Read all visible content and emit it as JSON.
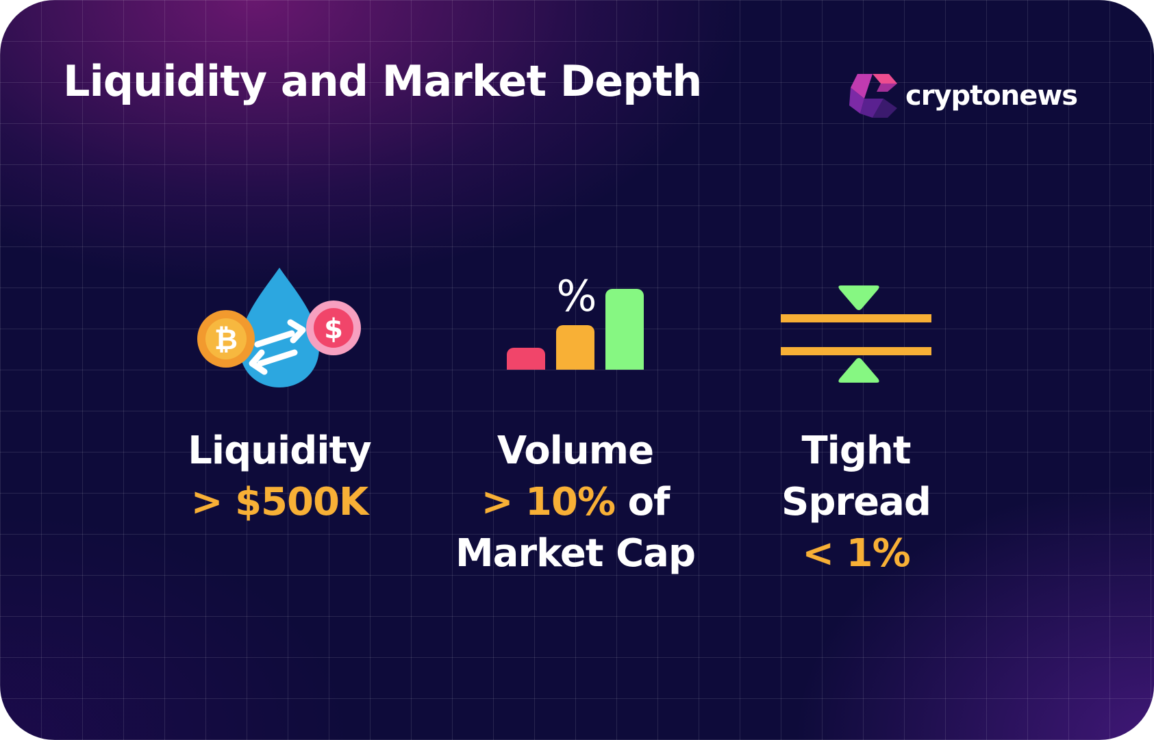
{
  "title": "Liquidity and Market Depth",
  "brand": {
    "name": "cryptonews",
    "logo_icon": "cryptonews-logo-icon"
  },
  "colors": {
    "background": "#0e0b3a",
    "highlight": "#f8b036",
    "text": "#ffffff",
    "pink": "#f1456a",
    "green": "#86f782",
    "blue": "#2ca7e0",
    "orange": "#f29a2e"
  },
  "metrics": [
    {
      "icon": "liquidity-drop-coins-icon",
      "icon_text": {
        "bitcoin": "₿",
        "dollar": "$"
      },
      "label": "Liquidity",
      "value": "> $500K"
    },
    {
      "icon": "volume-bar-chart-percent-icon",
      "icon_text": {
        "percent": "%"
      },
      "label": "Volume",
      "value": "> 10%",
      "suffix": "of",
      "line3": "Market Cap"
    },
    {
      "icon": "tight-spread-icon",
      "label_line1": "Tight",
      "label_line2": "Spread",
      "value": "< 1%"
    }
  ]
}
